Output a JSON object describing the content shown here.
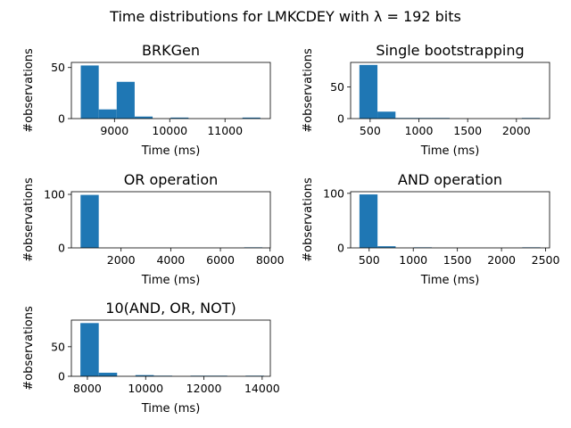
{
  "figure": {
    "title": "Time distributions for LMKCDEY with λ = 192 bits",
    "bar_color": "#1f77b4"
  },
  "chart_data": [
    {
      "type": "bar",
      "title": "BRKGen",
      "xlabel": "Time (ms)",
      "ylabel": "#observations",
      "xlim": [
        8220,
        11820
      ],
      "ylim": [
        0,
        55
      ],
      "xticks": [
        9000,
        10000,
        11000
      ],
      "yticks": [
        0,
        50
      ],
      "bins": [
        {
          "x0": 8390,
          "x1": 8715,
          "count": 52
        },
        {
          "x0": 8715,
          "x1": 9040,
          "count": 9
        },
        {
          "x0": 9040,
          "x1": 9365,
          "count": 36
        },
        {
          "x0": 9365,
          "x1": 9690,
          "count": 2
        },
        {
          "x0": 9690,
          "x1": 10015,
          "count": 0
        },
        {
          "x0": 10015,
          "x1": 10340,
          "count": 1
        },
        {
          "x0": 10340,
          "x1": 10665,
          "count": 0
        },
        {
          "x0": 10665,
          "x1": 10990,
          "count": 0
        },
        {
          "x0": 10990,
          "x1": 11315,
          "count": 0
        },
        {
          "x0": 11315,
          "x1": 11640,
          "count": 1
        }
      ]
    },
    {
      "type": "bar",
      "title": "Single bootstrapping",
      "xlabel": "Time (ms)",
      "ylabel": "#observations",
      "xlim": [
        300,
        2340
      ],
      "ylim": [
        0,
        89
      ],
      "xticks": [
        500,
        1000,
        1500,
        2000
      ],
      "yticks": [
        0,
        50
      ],
      "bins": [
        {
          "x0": 390,
          "x1": 575,
          "count": 85
        },
        {
          "x0": 575,
          "x1": 760,
          "count": 11
        },
        {
          "x0": 760,
          "x1": 945,
          "count": 1
        },
        {
          "x0": 945,
          "x1": 1130,
          "count": 1
        },
        {
          "x0": 1130,
          "x1": 1315,
          "count": 1
        },
        {
          "x0": 1315,
          "x1": 1500,
          "count": 0
        },
        {
          "x0": 1500,
          "x1": 1685,
          "count": 0
        },
        {
          "x0": 1685,
          "x1": 1870,
          "count": 0
        },
        {
          "x0": 1870,
          "x1": 2055,
          "count": 0
        },
        {
          "x0": 2055,
          "x1": 2240,
          "count": 1
        }
      ]
    },
    {
      "type": "bar",
      "title": "OR operation",
      "xlabel": "Time (ms)",
      "ylabel": "#observations",
      "xlim": [
        0,
        8010
      ],
      "ylim": [
        0,
        105
      ],
      "xticks": [
        2000,
        4000,
        6000,
        8000
      ],
      "yticks": [
        0,
        100
      ],
      "bins": [
        {
          "x0": 370,
          "x1": 1102,
          "count": 99
        },
        {
          "x0": 1102,
          "x1": 1834,
          "count": 0
        },
        {
          "x0": 1834,
          "x1": 2566,
          "count": 0
        },
        {
          "x0": 2566,
          "x1": 3298,
          "count": 0
        },
        {
          "x0": 3298,
          "x1": 4030,
          "count": 0
        },
        {
          "x0": 4030,
          "x1": 4762,
          "count": 0
        },
        {
          "x0": 4762,
          "x1": 5494,
          "count": 0
        },
        {
          "x0": 5494,
          "x1": 6226,
          "count": 0
        },
        {
          "x0": 6226,
          "x1": 6958,
          "count": 0
        },
        {
          "x0": 6958,
          "x1": 7690,
          "count": 1
        }
      ]
    },
    {
      "type": "bar",
      "title": "AND operation",
      "xlabel": "Time (ms)",
      "ylabel": "#observations",
      "xlim": [
        290,
        2545
      ],
      "ylim": [
        0,
        103
      ],
      "xticks": [
        500,
        1000,
        1500,
        2000,
        2500
      ],
      "yticks": [
        0,
        100
      ],
      "bins": [
        {
          "x0": 390,
          "x1": 595,
          "count": 98
        },
        {
          "x0": 595,
          "x1": 800,
          "count": 3
        },
        {
          "x0": 800,
          "x1": 1005,
          "count": 0
        },
        {
          "x0": 1005,
          "x1": 1210,
          "count": 1
        },
        {
          "x0": 1210,
          "x1": 1415,
          "count": 0
        },
        {
          "x0": 1415,
          "x1": 1620,
          "count": 0
        },
        {
          "x0": 1620,
          "x1": 1825,
          "count": 0
        },
        {
          "x0": 1825,
          "x1": 2030,
          "count": 0
        },
        {
          "x0": 2030,
          "x1": 2235,
          "count": 0
        },
        {
          "x0": 2235,
          "x1": 2440,
          "count": 1
        }
      ]
    },
    {
      "type": "bar",
      "title": "10(AND, OR, NOT)",
      "xlabel": "Time (ms)",
      "ylabel": "#observations",
      "xlim": [
        7450,
        14280
      ],
      "ylim": [
        0,
        95
      ],
      "xticks": [
        8000,
        10000,
        12000,
        14000
      ],
      "yticks": [
        0,
        50
      ],
      "bins": [
        {
          "x0": 7760,
          "x1": 8390,
          "count": 90
        },
        {
          "x0": 8390,
          "x1": 9020,
          "count": 6
        },
        {
          "x0": 9020,
          "x1": 9650,
          "count": 0
        },
        {
          "x0": 9650,
          "x1": 10280,
          "count": 2
        },
        {
          "x0": 10280,
          "x1": 10910,
          "count": 1
        },
        {
          "x0": 10910,
          "x1": 11540,
          "count": 0
        },
        {
          "x0": 11540,
          "x1": 12170,
          "count": 1
        },
        {
          "x0": 12170,
          "x1": 12800,
          "count": 1
        },
        {
          "x0": 12800,
          "x1": 13430,
          "count": 0
        },
        {
          "x0": 13430,
          "x1": 14060,
          "count": 1
        }
      ]
    }
  ]
}
